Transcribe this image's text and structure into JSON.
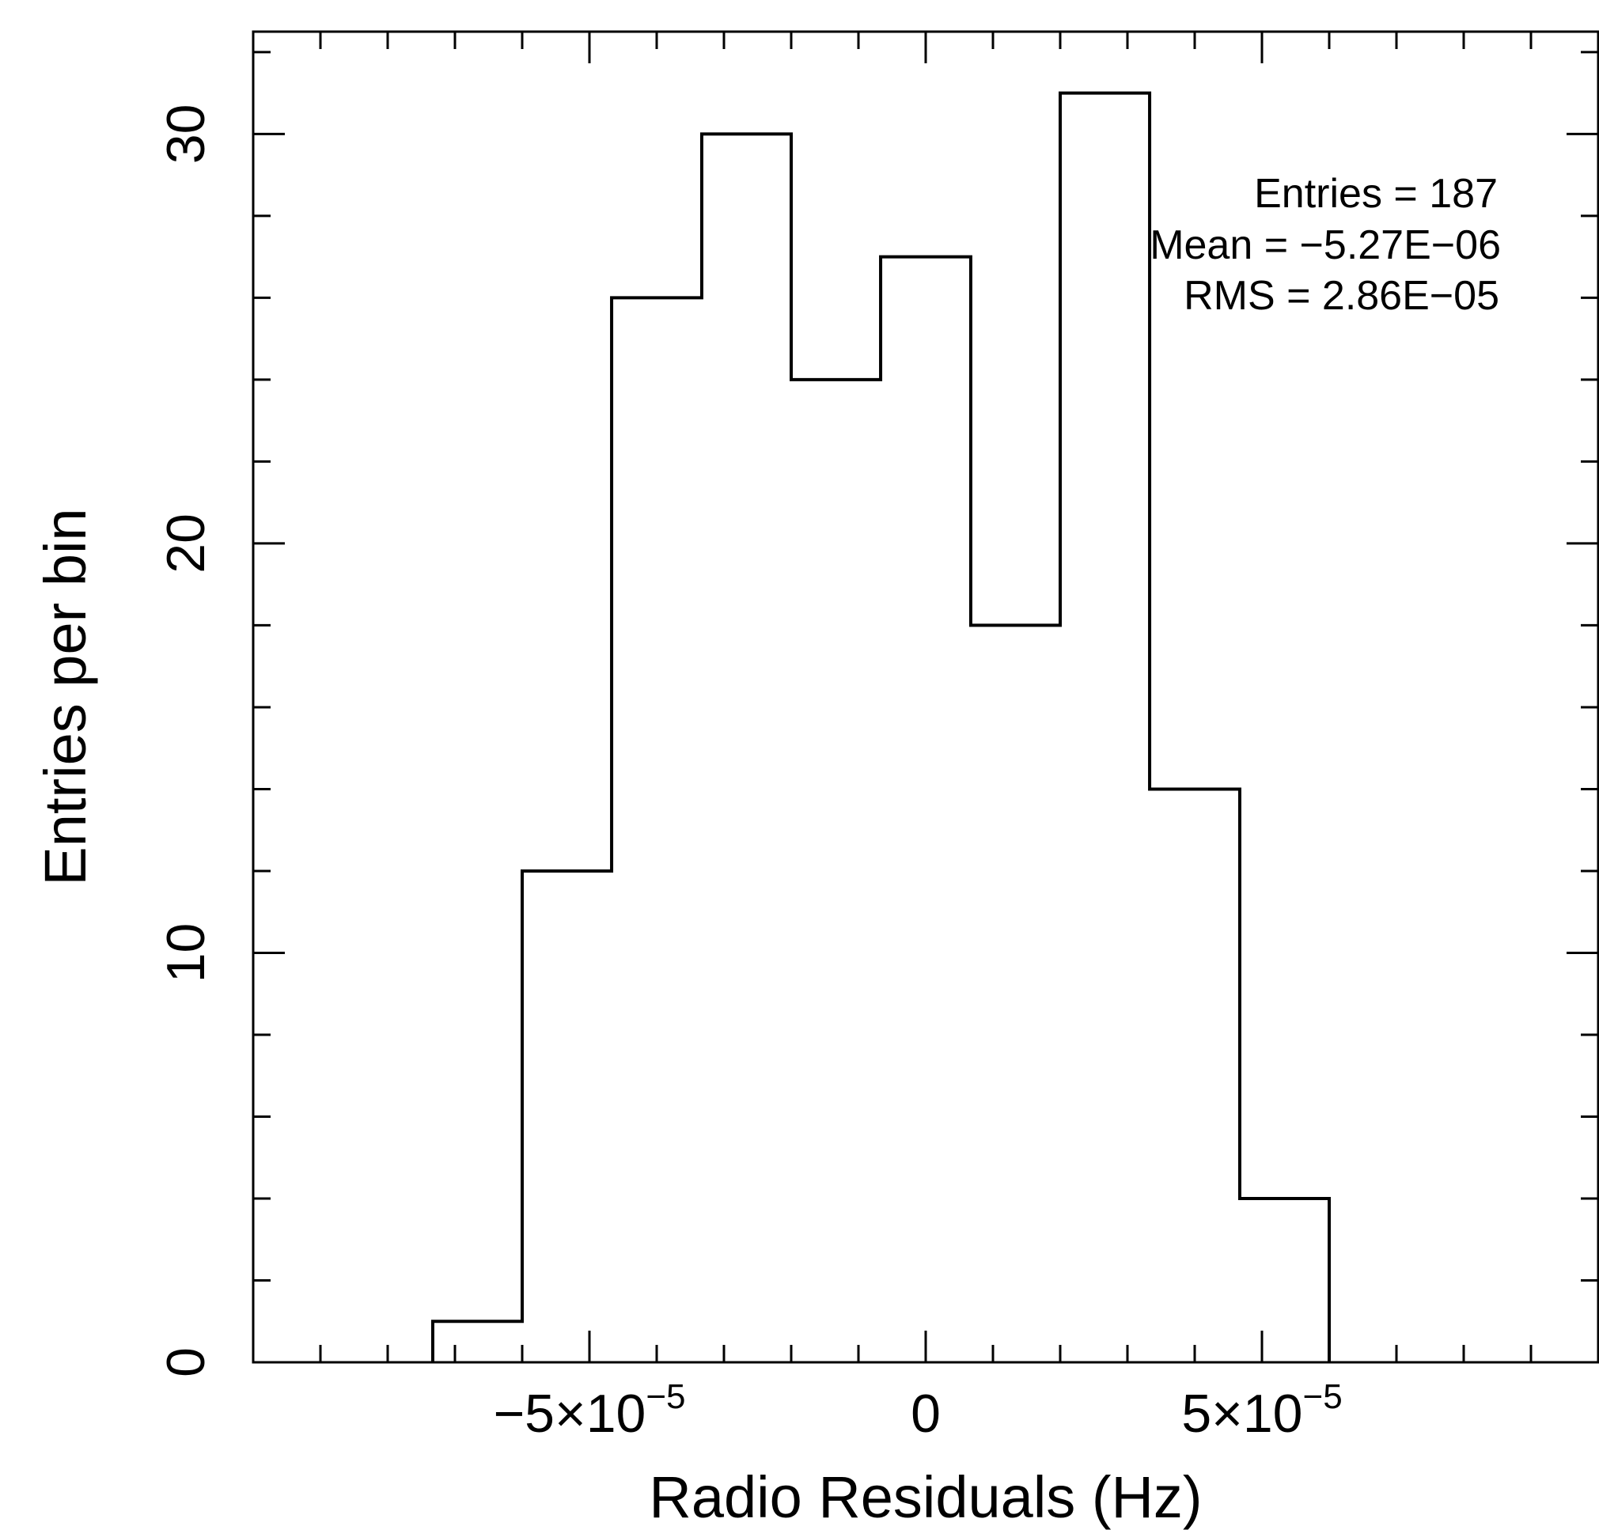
{
  "chart_data": {
    "type": "bar",
    "style": "step-histogram",
    "xlabel": "Radio Residuals (Hz)",
    "ylabel": "Entries per bin",
    "xlim": [
      -0.0001,
      0.0001
    ],
    "ylim": [
      0,
      32.5
    ],
    "x_tick_labels": [
      {
        "value": -5e-05,
        "base": "−5×10",
        "exp": "−5"
      },
      {
        "value": 0,
        "base": "0",
        "exp": ""
      },
      {
        "value": 5e-05,
        "base": "5×10",
        "exp": "−5"
      }
    ],
    "x_minor_step": 1e-05,
    "y_tick_labels": [
      "0",
      "10",
      "20",
      "30"
    ],
    "y_major_ticks": [
      0,
      10,
      20,
      30
    ],
    "y_minor_step": 2,
    "bin_edges": [
      -7.33e-05,
      -6e-05,
      -4.67e-05,
      -3.33e-05,
      -2e-05,
      -6.7e-06,
      6.7e-06,
      2e-05,
      3.33e-05,
      4.67e-05,
      6e-05
    ],
    "counts": [
      1,
      12,
      26,
      30,
      24,
      27,
      18,
      31,
      14,
      4
    ],
    "stats": {
      "entries": "Entries = 187",
      "mean": "Mean = −5.27E−06",
      "rms": "RMS = 2.86E−05"
    },
    "grid": false,
    "line_color": "#000000"
  }
}
